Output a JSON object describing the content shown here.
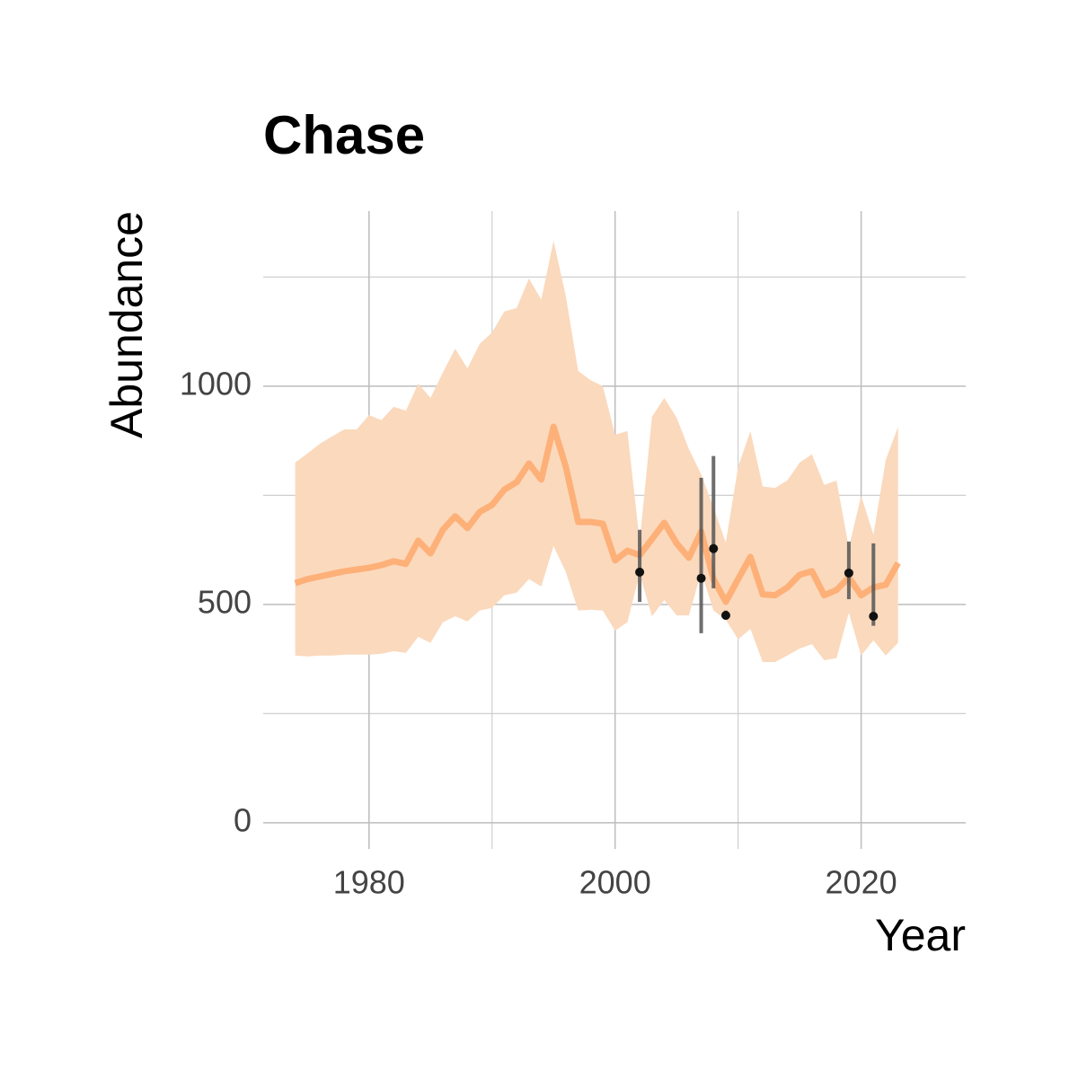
{
  "chart_data": {
    "type": "line",
    "title": "Chase",
    "x_label": "Year",
    "y_label": "Abundance",
    "x": [
      1974,
      1975,
      1976,
      1977,
      1978,
      1979,
      1980,
      1981,
      1982,
      1983,
      1984,
      1985,
      1986,
      1987,
      1988,
      1989,
      1990,
      1991,
      1992,
      1993,
      1994,
      1995,
      1996,
      1997,
      1998,
      1999,
      2000,
      2001,
      2002,
      2003,
      2004,
      2005,
      2006,
      2007,
      2008,
      2009,
      2010,
      2011,
      2012,
      2013,
      2014,
      2015,
      2016,
      2017,
      2018,
      2019,
      2020,
      2021,
      2022,
      2023
    ],
    "line": {
      "color": "#fdb078",
      "band_color": "#fbd9bd",
      "values": [
        549,
        558,
        564,
        570,
        576,
        580,
        584,
        590,
        599,
        593,
        646,
        617,
        671,
        702,
        675,
        712,
        728,
        763,
        780,
        823,
        786,
        907,
        815,
        689,
        689,
        685,
        601,
        623,
        613,
        650,
        687,
        640,
        607,
        667,
        558,
        506,
        558,
        609,
        523,
        521,
        539,
        568,
        576,
        521,
        533,
        562,
        521,
        539,
        545,
        595
      ],
      "upper": [
        825,
        846,
        868,
        885,
        901,
        901,
        934,
        922,
        953,
        944,
        1006,
        973,
        1031,
        1086,
        1041,
        1097,
        1123,
        1171,
        1179,
        1247,
        1198,
        1333,
        1206,
        1035,
        1014,
        1000,
        889,
        897,
        644,
        930,
        973,
        928,
        856,
        798,
        722,
        642,
        815,
        897,
        770,
        767,
        784,
        825,
        844,
        774,
        784,
        630,
        749,
        660,
        831,
        907
      ],
      "lower": [
        383,
        381,
        383,
        383,
        385,
        385,
        385,
        387,
        393,
        389,
        426,
        412,
        459,
        473,
        461,
        486,
        492,
        521,
        527,
        558,
        541,
        634,
        574,
        486,
        488,
        486,
        440,
        459,
        570,
        473,
        510,
        475,
        475,
        574,
        486,
        465,
        420,
        444,
        368,
        368,
        383,
        399,
        409,
        372,
        377,
        481,
        383,
        418,
        383,
        412
      ]
    },
    "observations": {
      "color": "#111111",
      "bar_color": "#555555",
      "x": [
        2002,
        2007,
        2008,
        2009,
        2019,
        2021
      ],
      "values": [
        574,
        560,
        628,
        475,
        572,
        473
      ],
      "lower": [
        506,
        434,
        537,
        465,
        512,
        451
      ],
      "upper": [
        671,
        790,
        840,
        486,
        644,
        640
      ]
    },
    "xlim": [
      1971.4,
      2028.5
    ],
    "ylim": [
      -60,
      1401
    ],
    "xticks": [
      1980,
      2000,
      2020
    ],
    "minor_xticks": [
      1990,
      2010
    ],
    "yticks": [
      0,
      500,
      1000
    ],
    "minor_yticks": [
      250,
      750,
      1250
    ],
    "grid": true
  }
}
